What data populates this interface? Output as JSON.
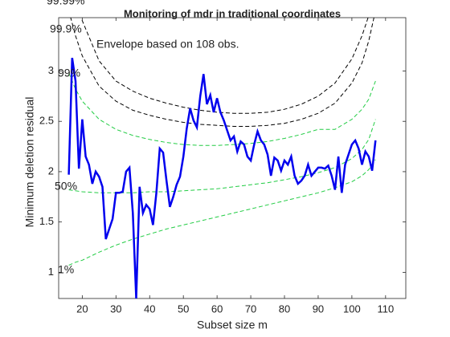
{
  "chart_data": {
    "type": "line",
    "title": "Monitoring of mdr in traditional coordinates",
    "xlabel": "Subset size m",
    "ylabel": "Minimum deletion residual",
    "annotations": [
      "99.99%",
      "99.9%",
      "99%",
      "50%",
      "1%",
      "Envelope based on 108 obs."
    ],
    "xlim": [
      13,
      116
    ],
    "ylim": [
      0.74,
      3.53
    ],
    "xticks": [
      20,
      30,
      40,
      50,
      60,
      70,
      80,
      90,
      100,
      110
    ],
    "yticks": [
      1,
      1.5,
      2,
      2.5,
      3
    ],
    "series": [
      {
        "color": "#000000",
        "dashed": true,
        "x": [
          16,
          18,
          20,
          25,
          30,
          35,
          40,
          45,
          50,
          55,
          60,
          65,
          70,
          75,
          80,
          85,
          90,
          95,
          100,
          103,
          105,
          107
        ],
        "values": [
          4.0,
          3.7,
          3.5,
          3.1,
          2.9,
          2.8,
          2.73,
          2.68,
          2.64,
          2.61,
          2.59,
          2.58,
          2.58,
          2.59,
          2.62,
          2.67,
          2.75,
          2.88,
          3.12,
          3.35,
          3.55,
          3.9
        ]
      },
      {
        "color": "#000000",
        "dashed": true,
        "x": [
          16,
          18,
          20,
          25,
          30,
          35,
          40,
          45,
          50,
          55,
          60,
          65,
          70,
          75,
          80,
          85,
          90,
          95,
          100,
          103,
          105,
          107
        ],
        "values": [
          3.6,
          3.35,
          3.15,
          2.85,
          2.7,
          2.61,
          2.56,
          2.52,
          2.49,
          2.47,
          2.46,
          2.45,
          2.45,
          2.46,
          2.48,
          2.52,
          2.58,
          2.68,
          2.88,
          3.08,
          3.3,
          3.6
        ]
      },
      {
        "color": "#22cc44",
        "dashed": true,
        "x": [
          16,
          18,
          20,
          25,
          30,
          35,
          40,
          45,
          50,
          55,
          60,
          65,
          70,
          75,
          80,
          85,
          90,
          95,
          100,
          103,
          105,
          107
        ],
        "values": [
          2.98,
          2.82,
          2.7,
          2.52,
          2.42,
          2.36,
          2.32,
          2.29,
          2.27,
          2.26,
          2.26,
          2.27,
          2.28,
          2.3,
          2.33,
          2.37,
          2.42,
          2.42,
          2.52,
          2.62,
          2.72,
          2.9
        ]
      },
      {
        "color": "#22cc44",
        "dashed": true,
        "x": [
          16,
          18,
          20,
          25,
          30,
          35,
          40,
          45,
          50,
          55,
          60,
          65,
          70,
          75,
          80,
          85,
          90,
          95,
          100,
          103,
          105,
          107
        ],
        "values": [
          1.82,
          1.81,
          1.8,
          1.79,
          1.79,
          1.79,
          1.8,
          1.8,
          1.81,
          1.82,
          1.83,
          1.85,
          1.87,
          1.89,
          1.92,
          1.95,
          1.99,
          2.04,
          2.13,
          2.22,
          2.32,
          2.52
        ]
      },
      {
        "color": "#22cc44",
        "dashed": true,
        "x": [
          16,
          18,
          20,
          25,
          30,
          35,
          40,
          45,
          50,
          55,
          60,
          65,
          70,
          75,
          80,
          85,
          90,
          95,
          100,
          103,
          105,
          107
        ],
        "values": [
          1.07,
          1.1,
          1.12,
          1.2,
          1.27,
          1.33,
          1.38,
          1.43,
          1.47,
          1.51,
          1.55,
          1.59,
          1.63,
          1.67,
          1.71,
          1.75,
          1.79,
          1.84,
          1.9,
          1.96,
          2.02,
          2.12
        ]
      },
      {
        "color": "#0000ee",
        "dashed": false,
        "x": [
          16,
          17,
          18,
          19,
          20,
          21,
          22,
          23,
          24,
          25,
          26,
          27,
          28,
          29,
          30,
          31,
          32,
          33,
          34,
          35,
          36,
          37,
          38,
          39,
          40,
          41,
          42,
          43,
          44,
          45,
          46,
          47,
          48,
          49,
          50,
          51,
          52,
          53,
          54,
          55,
          56,
          57,
          58,
          59,
          60,
          61,
          62,
          63,
          64,
          65,
          66,
          67,
          68,
          69,
          70,
          71,
          72,
          73,
          74,
          75,
          76,
          77,
          78,
          79,
          80,
          81,
          82,
          83,
          84,
          85,
          86,
          87,
          88,
          89,
          90,
          91,
          92,
          93,
          94,
          95,
          96,
          97,
          98,
          99,
          100,
          101,
          102,
          103,
          104,
          105,
          106,
          107
        ],
        "values": [
          1.97,
          3.13,
          2.9,
          2.03,
          2.52,
          2.15,
          2.07,
          1.88,
          2.0,
          1.95,
          1.85,
          1.33,
          1.43,
          1.53,
          1.79,
          1.79,
          1.8,
          2.0,
          2.04,
          1.59,
          0.74,
          1.85,
          1.59,
          1.67,
          1.63,
          1.47,
          1.79,
          2.23,
          2.19,
          1.91,
          1.65,
          1.75,
          1.87,
          1.95,
          2.15,
          2.43,
          2.63,
          2.51,
          2.44,
          2.75,
          2.97,
          2.67,
          2.76,
          2.59,
          2.73,
          2.59,
          2.51,
          2.41,
          2.31,
          2.35,
          2.2,
          2.3,
          2.27,
          2.15,
          2.11,
          2.27,
          2.4,
          2.31,
          2.27,
          2.17,
          1.96,
          2.14,
          2.11,
          2.01,
          2.11,
          2.07,
          2.15,
          1.96,
          1.88,
          1.91,
          1.96,
          2.07,
          1.96,
          2.0,
          2.04,
          2.04,
          2.03,
          2.06,
          1.96,
          1.82,
          2.15,
          1.79,
          2.07,
          2.17,
          2.27,
          2.31,
          2.23,
          2.07,
          2.2,
          2.15,
          2.01,
          2.31
        ]
      }
    ]
  }
}
